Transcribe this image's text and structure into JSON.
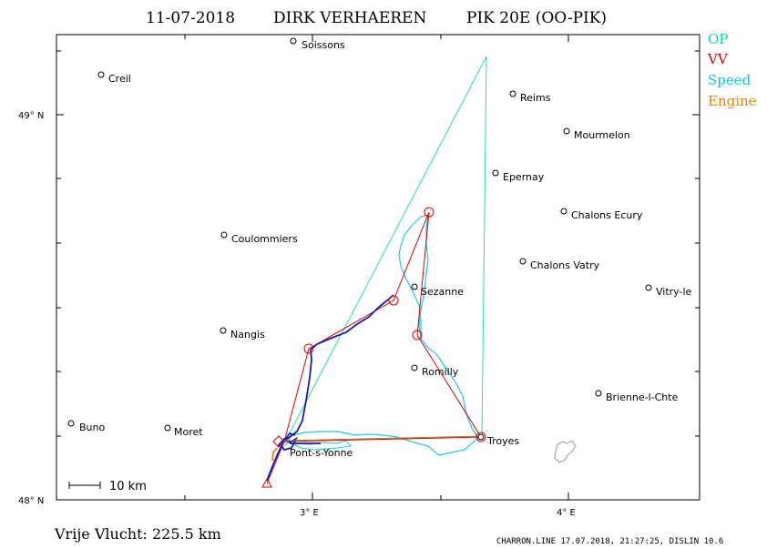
{
  "title": {
    "date": "11-07-2018",
    "pilot": "DIRK VERHAEREN",
    "glider": "PIK 20E (OO-PIK)"
  },
  "legend": [
    {
      "label": "OP",
      "color": "#00e0a0"
    },
    {
      "label": "VV",
      "color": "#e00000"
    },
    {
      "label": "Speed",
      "color": "#00c8e8"
    },
    {
      "label": "Engine",
      "color": "#f08000"
    }
  ],
  "axes": {
    "y_ticks": [
      "49° N",
      "48° N"
    ],
    "x_ticks": [
      "3° E",
      "4° E"
    ]
  },
  "towns": [
    {
      "name": "Soissons"
    },
    {
      "name": "Creil"
    },
    {
      "name": "Reims"
    },
    {
      "name": "Mourmelon"
    },
    {
      "name": "Epernay"
    },
    {
      "name": "Chalons Ecury"
    },
    {
      "name": "Coulommiers"
    },
    {
      "name": "Chalons Vatry"
    },
    {
      "name": "Sezanne"
    },
    {
      "name": "Vitry-le"
    },
    {
      "name": "Nangis"
    },
    {
      "name": "Romilly"
    },
    {
      "name": "Brienne-l-Chte"
    },
    {
      "name": "Buno"
    },
    {
      "name": "Moret"
    },
    {
      "name": "Troyes"
    },
    {
      "name": "Pont-s-Yonne"
    }
  ],
  "scale_bar": "10 km",
  "footer": {
    "distance": "Vrije Vlucht:  225.5 km",
    "credit": "CHARRON.LINE 17.07.2018, 21:27:25, DISLIN 10.6"
  }
}
